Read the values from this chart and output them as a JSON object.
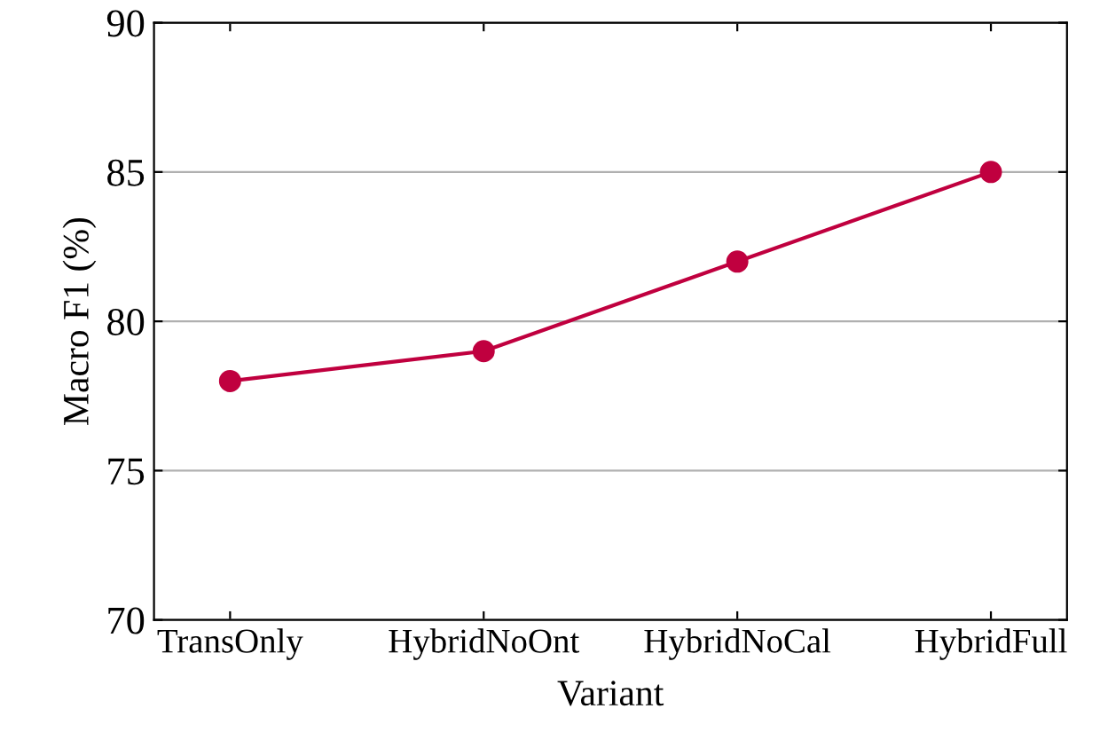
{
  "chart_data": {
    "type": "line",
    "xlabel": "Variant",
    "ylabel": "Macro F1 (%)",
    "categories": [
      "TransOnly",
      "HybridNoOnt",
      "HybridNoCal",
      "HybridFull"
    ],
    "series": [
      {
        "color": "#c0003f",
        "values": [
          78,
          79,
          82,
          85
        ]
      }
    ],
    "ylim": [
      70,
      90
    ],
    "yticks": [
      70,
      75,
      80,
      85,
      90
    ],
    "grid": "y",
    "marker": "circle",
    "line_style": "solid"
  }
}
